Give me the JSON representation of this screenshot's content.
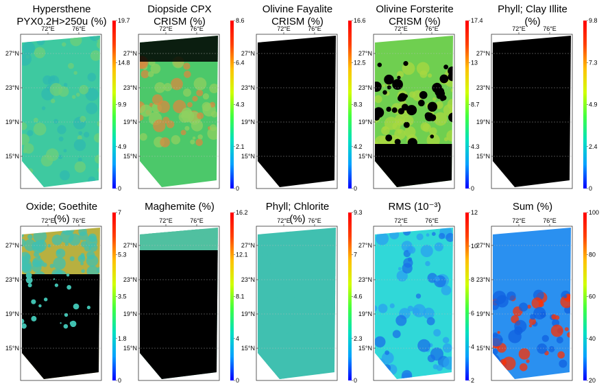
{
  "figure": {
    "colormap_stops": [
      "#0000ff",
      "#00a0ff",
      "#00e0c0",
      "#40ff40",
      "#d0ff00",
      "#ffc000",
      "#ff4000",
      "#ff0000"
    ],
    "map_colors": {
      "no_data": "#000000"
    }
  },
  "chart_data": [
    {
      "type": "heatmap",
      "title": [
        "Hypersthene",
        "PYX0.2H>250u (%)"
      ],
      "x_ticks": [
        "72°E",
        "76°E"
      ],
      "y_ticks": [
        "27°N",
        "23°N",
        "19°N",
        "15°N"
      ],
      "colorbar": {
        "min": 0,
        "max": 19.7,
        "ticks": [
          "19.7",
          "14.8",
          "9.9",
          "4.9",
          "0"
        ]
      },
      "appearance": "teal-green map, moderate values across the whole swath, yellow-green patches in center",
      "fill_colors": [
        "#3ec9a0",
        "#6fcf7a",
        "#2fb8b0"
      ]
    },
    {
      "type": "heatmap",
      "title": [
        "Diopside CPX",
        "CRISM (%)"
      ],
      "x_ticks": [
        "72°E",
        "76°E"
      ],
      "y_ticks": [
        "27°N",
        "23°N",
        "19°N",
        "15°N"
      ],
      "colorbar": {
        "min": 0,
        "max": 8.6,
        "ticks": [
          "8.6",
          "6.4",
          "4.3",
          "2.1",
          "0"
        ]
      },
      "appearance": "black top with green-olive patches, green-yellow body with red-orange spots",
      "fill_colors": [
        "#4cc86a",
        "#8fd060",
        "#d88a40"
      ]
    },
    {
      "type": "heatmap",
      "title": [
        "Olivine Fayalite",
        "CRISM (%)"
      ],
      "x_ticks": [
        "72°E",
        "76°E"
      ],
      "y_ticks": [
        "27°N",
        "23°N",
        "19°N",
        "15°N"
      ],
      "colorbar": {
        "min": 0,
        "max": 16.6,
        "ticks": [
          "16.6",
          "12.5",
          "8.3",
          "4.2",
          "0"
        ]
      },
      "appearance": "almost entirely black (near zero)",
      "fill_colors": [
        "#000000"
      ]
    },
    {
      "type": "heatmap",
      "title": [
        "Olivine Forsterite",
        "CRISM (%)"
      ],
      "x_ticks": [
        "72°E",
        "76°E"
      ],
      "y_ticks": [
        "27°N",
        "23°N",
        "19°N",
        "15°N"
      ],
      "colorbar": {
        "min": 0,
        "max": 17.4,
        "ticks": [
          "17.4",
          "13",
          "8.7",
          "4.3",
          "0"
        ]
      },
      "appearance": "black with green-yellow mottled patches in upper half",
      "fill_colors": [
        "#6fcf50",
        "#a8d840"
      ]
    },
    {
      "type": "heatmap",
      "title": [
        "Phyll; Clay Illite",
        "(%)"
      ],
      "x_ticks": [
        "72°E",
        "76°E"
      ],
      "y_ticks": [
        "27°N",
        "23°N",
        "19°N",
        "15°N"
      ],
      "colorbar": {
        "min": 0,
        "max": 9.8,
        "ticks": [
          "9.8",
          "7.3",
          "4.9",
          "2.4",
          "0"
        ]
      },
      "appearance": "black with sparse white specks near top",
      "fill_colors": [
        "#000000"
      ]
    },
    {
      "type": "heatmap",
      "title": [
        "Oxide; Goethite",
        "(%)"
      ],
      "x_ticks": [
        "72°E",
        "76°E"
      ],
      "y_ticks": [
        "27°N",
        "23°N",
        "19°N",
        "15°N"
      ],
      "colorbar": {
        "min": 0,
        "max": 7,
        "ticks": [
          "7",
          "5.3",
          "3.5",
          "1.8",
          "0"
        ]
      },
      "appearance": "yellow-olive top region, black below with cyan patches",
      "fill_colors": [
        "#b8b040",
        "#40c0b0"
      ]
    },
    {
      "type": "heatmap",
      "title": [
        "Maghemite (%)"
      ],
      "x_ticks": [
        "72°E",
        "76°E"
      ],
      "y_ticks": [
        "27°N",
        "23°N",
        "19°N",
        "15°N"
      ],
      "colorbar": {
        "min": 0,
        "max": 16.2,
        "ticks": [
          "16.2",
          "12.1",
          "8.1",
          "4",
          "0"
        ]
      },
      "appearance": "black with thin teal band at the top",
      "fill_colors": [
        "#50c0a0"
      ]
    },
    {
      "type": "heatmap",
      "title": [
        "Phyll; Chlorite",
        "(%)"
      ],
      "x_ticks": [
        "72°E",
        "76°E"
      ],
      "y_ticks": [
        "27°N",
        "23°N",
        "19°N",
        "15°N"
      ],
      "colorbar": {
        "min": 0,
        "max": 9.3,
        "ticks": [
          "9.3",
          "7",
          "4.6",
          "2.3",
          "0"
        ]
      },
      "appearance": "black with a few scattered teal specks",
      "fill_colors": [
        "#40c0b0"
      ]
    },
    {
      "type": "heatmap",
      "title": [
        "RMS (10⁻³)"
      ],
      "x_ticks": [
        "72°E",
        "76°E"
      ],
      "y_ticks": [
        "27°N",
        "23°N",
        "19°N",
        "15°N"
      ],
      "colorbar": {
        "min": 0,
        "max": 12,
        "ticks": [
          "12",
          "10",
          "8",
          "6",
          "4",
          "2"
        ]
      },
      "appearance": "cyan top fading to blue below",
      "fill_colors": [
        "#30d8d8",
        "#2aa0f0",
        "#1a70e8"
      ]
    },
    {
      "type": "heatmap",
      "title": [
        "Sum (%)"
      ],
      "x_ticks": [
        "72°E",
        "76°E"
      ],
      "y_ticks": [
        "27°N",
        "23°N",
        "19°N",
        "15°N"
      ],
      "colorbar": {
        "min": 0,
        "max": 100,
        "ticks": [
          "100",
          "80",
          "60",
          "40",
          "20"
        ]
      },
      "appearance": "blue map with red-orange hotspots lower-left",
      "fill_colors": [
        "#2a90f0",
        "#1060e0",
        "#ff3000"
      ]
    }
  ]
}
